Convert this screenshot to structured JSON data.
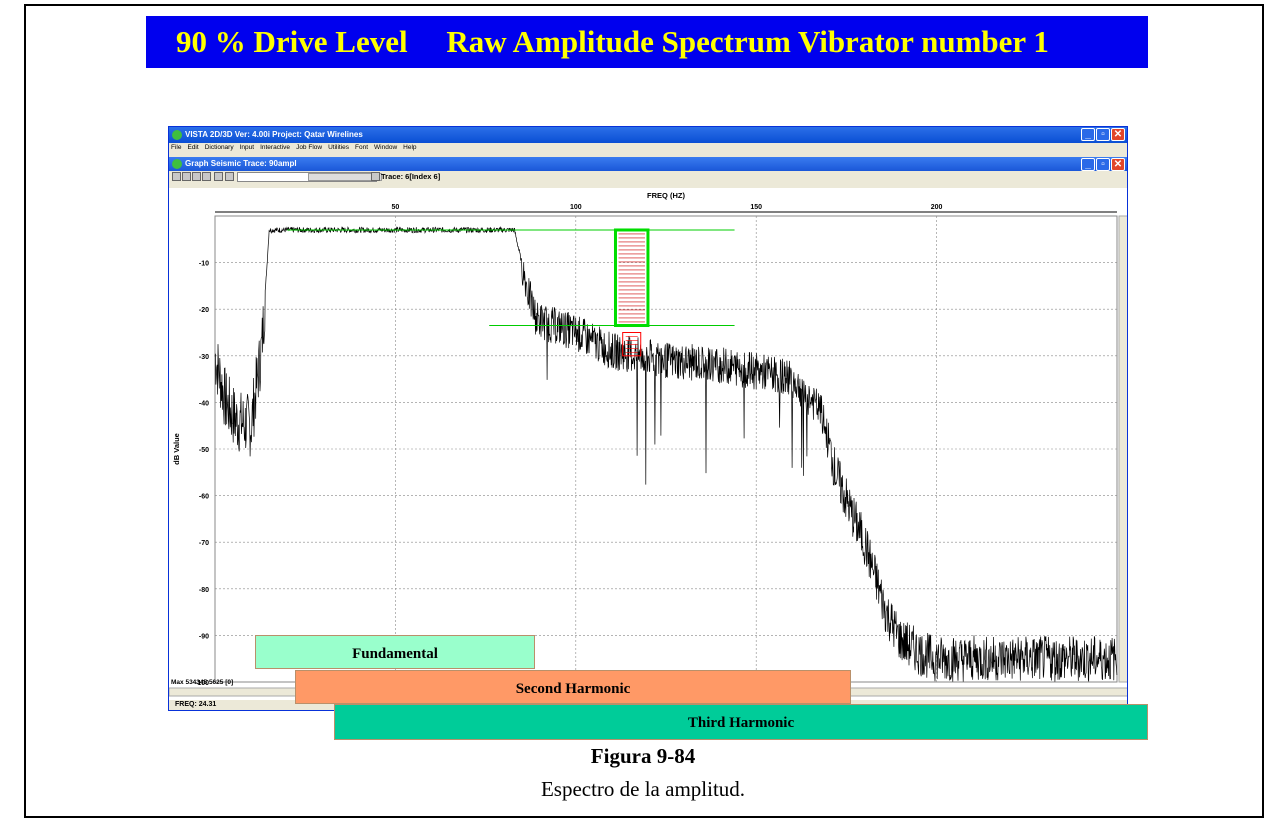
{
  "banner": {
    "text": "90 % Drive Level     Raw Amplitude Spectrum Vibrator number 1"
  },
  "app": {
    "title": "VISTA 2D/3D Ver: 4.00i Project: Qatar Wirelines",
    "menu": [
      "File",
      "Edit",
      "Dictionary",
      "Input",
      "Interactive",
      "Job Flow",
      "Utilities",
      "Font",
      "Window",
      "Help"
    ],
    "subwindow_title": "Graph Seismic Trace: 90ampl",
    "trace_label": "Trace: 6[Index 6]",
    "status": "FREQ:  24.31",
    "max_label": "Max 534345.5625 [0]"
  },
  "harmonics": {
    "fundamental": "Fundamental",
    "second": "Second Harmonic",
    "third": "Third Harmonic"
  },
  "figure": {
    "title": "Figura 9-84",
    "caption": "Espectro de la amplitud."
  },
  "chart_data": {
    "type": "line",
    "title": "",
    "xlabel": "FREQ (HZ)",
    "ylabel": "dB Value",
    "x_ticks": [
      50,
      100,
      150,
      200
    ],
    "y_ticks": [
      -10,
      -20,
      -30,
      -40,
      -50,
      -60,
      -70,
      -80,
      -90,
      -100
    ],
    "xlim": [
      0,
      250
    ],
    "ylim": [
      -100,
      0
    ],
    "grid": true,
    "series": [
      {
        "color": "#000000",
        "x": [
          0,
          3,
          6,
          10,
          13,
          15,
          18,
          30,
          50,
          70,
          83,
          85,
          87,
          89,
          92,
          100,
          110,
          125,
          140,
          155,
          160,
          168,
          172,
          176,
          180,
          186,
          190,
          196,
          200,
          215,
          240,
          250
        ],
        "y": [
          -30,
          -40,
          -44,
          -45,
          -28,
          -3,
          -3,
          -3,
          -3,
          -3,
          -3,
          -10,
          -17,
          -22,
          -23,
          -25,
          -29,
          -31,
          -32,
          -34,
          -35,
          -42,
          -55,
          -63,
          -70,
          -85,
          -91,
          -94,
          -95,
          -95,
          -95,
          -95
        ]
      }
    ],
    "annotations": [
      {
        "type": "hline",
        "color": "#00cc00",
        "y": -3,
        "x_from": 20,
        "x_to": 144
      },
      {
        "type": "hline",
        "color": "#00cc00",
        "y": -23.5,
        "x_from": 76,
        "x_to": 144
      },
      {
        "type": "box",
        "color": "#00dd00",
        "x_from": 111,
        "x_to": 120,
        "y_from": -3,
        "y_to": -23.5
      },
      {
        "type": "box",
        "color": "#ff0000",
        "x_from": 113,
        "x_to": 118,
        "y_from": -25,
        "y_to": -30
      }
    ],
    "colors": {
      "frame_banner": "#0000ee",
      "banner_text": "#ffff00",
      "threshold": "#00cc00",
      "marker": "#ff0000"
    }
  }
}
